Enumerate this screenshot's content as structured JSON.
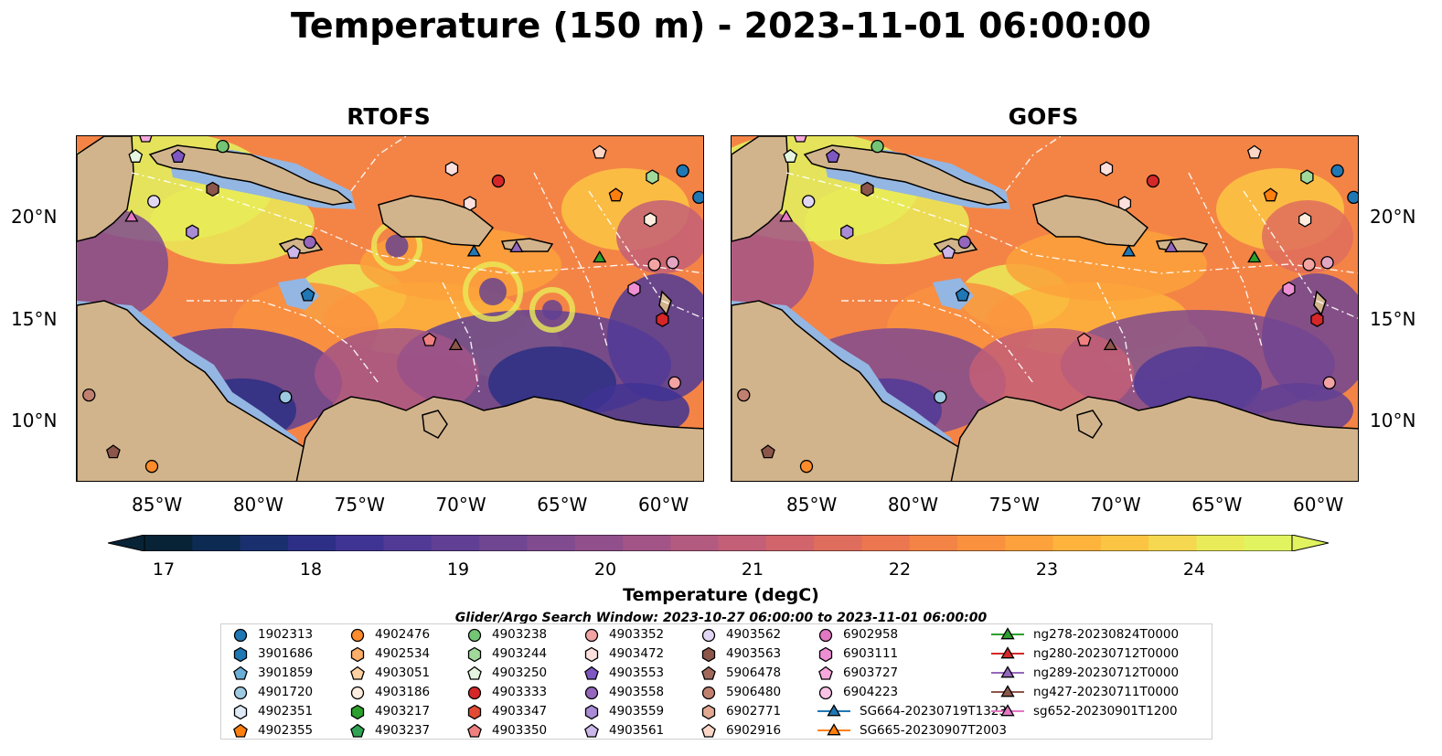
{
  "figure": {
    "title": "Temperature (150 m) - 2023-11-01 06:00:00"
  },
  "panels": [
    {
      "title": "RTOFS",
      "model": "rtofs"
    },
    {
      "title": "GOFS",
      "model": "gofs"
    }
  ],
  "axes": {
    "lon_ticks": [
      "85°W",
      "80°W",
      "75°W",
      "70°W",
      "65°W",
      "60°W"
    ],
    "lat_ticks": [
      "20°N",
      "15°N",
      "10°N"
    ],
    "lon_range": [
      -89,
      -58
    ],
    "lat_range": [
      7,
      24
    ]
  },
  "colorbar": {
    "label": "Temperature (degC)",
    "ticks": [
      "17",
      "18",
      "19",
      "20",
      "21",
      "22",
      "23",
      "24"
    ],
    "range": [
      16.5,
      24.75
    ],
    "extend": "both",
    "colors": [
      "#082336",
      "#0c2a52",
      "#1a2f6e",
      "#2c2f85",
      "#3f3393",
      "#503a96",
      "#603f94",
      "#704592",
      "#804b8f",
      "#914f8b",
      "#a25487",
      "#b35a80",
      "#c35f77",
      "#d2656b",
      "#df6d5d",
      "#eb7650",
      "#f48446",
      "#f9913f",
      "#fca13b",
      "#fdb33c",
      "#fbc543",
      "#f5d84f",
      "#eaeb58",
      "#e1f35f"
    ]
  },
  "search_window": "Glider/Argo Search Window: 2023-10-27 06:00:00 to 2023-11-01 06:00:00",
  "legend": {
    "items": [
      {
        "label": "1902313",
        "marker": "circle",
        "color": "#1f77b4"
      },
      {
        "label": "3901686",
        "marker": "hexagon",
        "color": "#1f77b4"
      },
      {
        "label": "3901859",
        "marker": "pentagon",
        "color": "#6baed6"
      },
      {
        "label": "4901720",
        "marker": "circle",
        "color": "#9ecae1"
      },
      {
        "label": "4902351",
        "marker": "hexagon",
        "color": "#deebf7"
      },
      {
        "label": "4902355",
        "marker": "pentagon",
        "color": "#ff7f0e"
      },
      {
        "label": "4902476",
        "marker": "circle",
        "color": "#ff8c2a"
      },
      {
        "label": "4902534",
        "marker": "hexagon",
        "color": "#fdae6b"
      },
      {
        "label": "4903051",
        "marker": "pentagon",
        "color": "#fdd0a2"
      },
      {
        "label": "4903186",
        "marker": "circle",
        "color": "#feedde"
      },
      {
        "label": "4903217",
        "marker": "hexagon",
        "color": "#2ca02c"
      },
      {
        "label": "4903237",
        "marker": "pentagon",
        "color": "#31a354"
      },
      {
        "label": "4903238",
        "marker": "circle",
        "color": "#74c476"
      },
      {
        "label": "4903244",
        "marker": "hexagon",
        "color": "#a1d99b"
      },
      {
        "label": "4903250",
        "marker": "pentagon",
        "color": "#e5f5e0"
      },
      {
        "label": "4903333",
        "marker": "circle",
        "color": "#d62728"
      },
      {
        "label": "4903347",
        "marker": "hexagon",
        "color": "#e34a33"
      },
      {
        "label": "4903350",
        "marker": "pentagon",
        "color": "#f08080"
      },
      {
        "label": "4903352",
        "marker": "circle",
        "color": "#f4a3a3"
      },
      {
        "label": "4903472",
        "marker": "hexagon",
        "color": "#fde0dd"
      },
      {
        "label": "4903553",
        "marker": "pentagon",
        "color": "#7e57c2"
      },
      {
        "label": "4903558",
        "marker": "circle",
        "color": "#9467bd"
      },
      {
        "label": "4903559",
        "marker": "hexagon",
        "color": "#a98bd6"
      },
      {
        "label": "4903561",
        "marker": "pentagon",
        "color": "#cbb7ea"
      },
      {
        "label": "4903562",
        "marker": "circle",
        "color": "#e2d6f5"
      },
      {
        "label": "4903563",
        "marker": "hexagon",
        "color": "#8c564b"
      },
      {
        "label": "5906478",
        "marker": "pentagon",
        "color": "#a0695c"
      },
      {
        "label": "5906480",
        "marker": "circle",
        "color": "#c08070"
      },
      {
        "label": "6902771",
        "marker": "hexagon",
        "color": "#e1a892"
      },
      {
        "label": "6902916",
        "marker": "pentagon",
        "color": "#fbd6c6"
      },
      {
        "label": "6902958",
        "marker": "circle",
        "color": "#e377c2"
      },
      {
        "label": "6903111",
        "marker": "hexagon",
        "color": "#ee8fd4"
      },
      {
        "label": "6903727",
        "marker": "pentagon",
        "color": "#f7a8dd"
      },
      {
        "label": "6904223",
        "marker": "circle",
        "color": "#f9c3e6"
      },
      {
        "label": "SG664-20230719T1323",
        "marker": "triangle-line",
        "color": "#1f77b4"
      },
      {
        "label": "SG665-20230907T2003",
        "marker": "triangle-line",
        "color": "#ff7f0e"
      },
      {
        "label": "ng278-20230824T0000",
        "marker": "triangle-line",
        "color": "#2ca02c"
      },
      {
        "label": "ng280-20230712T0000",
        "marker": "triangle-line",
        "color": "#d62728"
      },
      {
        "label": "ng289-20230712T0000",
        "marker": "triangle-line",
        "color": "#9467bd"
      },
      {
        "label": "ng427-20230711T0000",
        "marker": "triangle-line",
        "color": "#8c564b"
      },
      {
        "label": "sg652-20230901T1200",
        "marker": "triangle-line",
        "color": "#e377c2"
      }
    ]
  },
  "map_markers": [
    {
      "lon": -85.6,
      "lat": 24.0,
      "marker": "pentagon",
      "color": "#f7a8dd"
    },
    {
      "lon": -86.1,
      "lat": 23.0,
      "marker": "pentagon",
      "color": "#e5f5e0"
    },
    {
      "lon": -84.0,
      "lat": 23.0,
      "marker": "pentagon",
      "color": "#7e57c2"
    },
    {
      "lon": -81.8,
      "lat": 23.5,
      "marker": "circle",
      "color": "#74c476"
    },
    {
      "lon": -82.3,
      "lat": 21.4,
      "marker": "hexagon",
      "color": "#8c564b"
    },
    {
      "lon": -85.2,
      "lat": 20.8,
      "marker": "circle",
      "color": "#e2d6f5"
    },
    {
      "lon": -86.3,
      "lat": 20.0,
      "marker": "triangle",
      "color": "#e377c2"
    },
    {
      "lon": -83.3,
      "lat": 19.3,
      "marker": "hexagon",
      "color": "#a98bd6"
    },
    {
      "lon": -77.5,
      "lat": 18.8,
      "marker": "circle",
      "color": "#9467bd"
    },
    {
      "lon": -78.3,
      "lat": 18.3,
      "marker": "pentagon",
      "color": "#cbb7ea"
    },
    {
      "lon": -77.6,
      "lat": 16.2,
      "marker": "pentagon",
      "color": "#1f77b4"
    },
    {
      "lon": -70.5,
      "lat": 22.4,
      "marker": "hexagon",
      "color": "#fde0dd"
    },
    {
      "lon": -68.2,
      "lat": 21.8,
      "marker": "circle",
      "color": "#d62728"
    },
    {
      "lon": -69.6,
      "lat": 20.7,
      "marker": "hexagon",
      "color": "#fde0dd"
    },
    {
      "lon": -69.4,
      "lat": 18.3,
      "marker": "triangle",
      "color": "#1f77b4"
    },
    {
      "lon": -67.3,
      "lat": 18.5,
      "marker": "triangle",
      "color": "#9467bd"
    },
    {
      "lon": -63.2,
      "lat": 23.2,
      "marker": "pentagon",
      "color": "#fbd6c6"
    },
    {
      "lon": -62.4,
      "lat": 21.1,
      "marker": "pentagon",
      "color": "#ff7f0e"
    },
    {
      "lon": -60.6,
      "lat": 22.0,
      "marker": "hexagon",
      "color": "#a1d99b"
    },
    {
      "lon": -59.1,
      "lat": 22.3,
      "marker": "circle",
      "color": "#1f77b4"
    },
    {
      "lon": -60.7,
      "lat": 19.9,
      "marker": "hexagon",
      "color": "#feedde"
    },
    {
      "lon": -63.2,
      "lat": 18.0,
      "marker": "triangle",
      "color": "#2ca02c"
    },
    {
      "lon": -59.6,
      "lat": 17.8,
      "marker": "circle",
      "color": "#e2a6c3"
    },
    {
      "lon": -60.5,
      "lat": 17.7,
      "marker": "circle",
      "color": "#f4a3a3"
    },
    {
      "lon": -58.3,
      "lat": 21.0,
      "marker": "circle",
      "color": "#1f77b4"
    },
    {
      "lon": -61.5,
      "lat": 16.5,
      "marker": "hexagon",
      "color": "#ee8fd4"
    },
    {
      "lon": -60.1,
      "lat": 15.0,
      "marker": "hexagon",
      "color": "#d62728"
    },
    {
      "lon": -71.6,
      "lat": 14.0,
      "marker": "pentagon",
      "color": "#f08080"
    },
    {
      "lon": -70.3,
      "lat": 13.7,
      "marker": "triangle",
      "color": "#8c564b"
    },
    {
      "lon": -59.5,
      "lat": 11.9,
      "marker": "circle",
      "color": "#f4a3a3"
    },
    {
      "lon": -78.7,
      "lat": 11.2,
      "marker": "circle",
      "color": "#9ecae1"
    },
    {
      "lon": -88.4,
      "lat": 11.3,
      "marker": "circle",
      "color": "#c08070"
    },
    {
      "lon": -87.2,
      "lat": 8.5,
      "marker": "pentagon",
      "color": "#8c564b"
    },
    {
      "lon": -85.3,
      "lat": 7.8,
      "marker": "circle",
      "color": "#ff8c2a"
    }
  ]
}
